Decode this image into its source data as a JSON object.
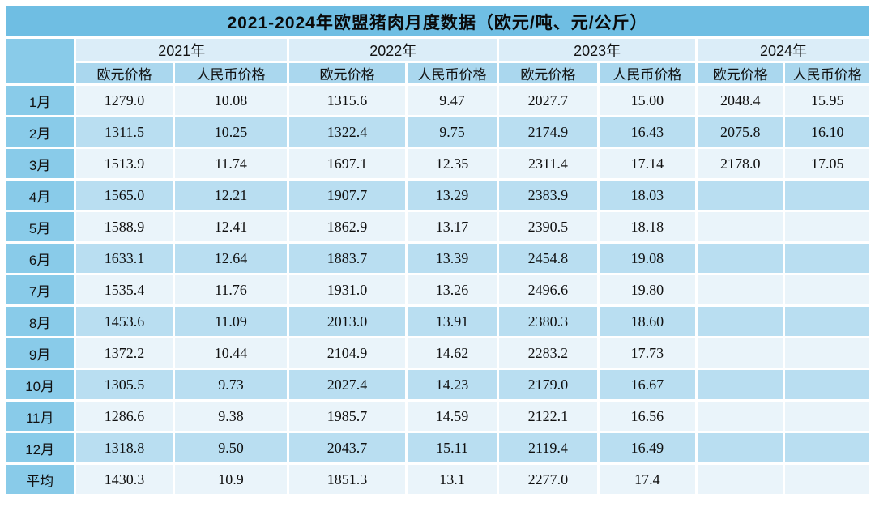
{
  "table": {
    "title": "2021-2024年欧盟猪肉月度数据（欧元/吨、元/公斤）",
    "year_headers": [
      "2021年",
      "2022年",
      "2023年",
      "2024年"
    ],
    "sub_headers": [
      "欧元价格",
      "人民币价格"
    ],
    "rows": [
      {
        "label": "1月",
        "values": [
          "1279.0",
          "10.08",
          "1315.6",
          "9.47",
          "2027.7",
          "15.00",
          "2048.4",
          "15.95"
        ]
      },
      {
        "label": "2月",
        "values": [
          "1311.5",
          "10.25",
          "1322.4",
          "9.75",
          "2174.9",
          "16.43",
          "2075.8",
          "16.10"
        ]
      },
      {
        "label": "3月",
        "values": [
          "1513.9",
          "11.74",
          "1697.1",
          "12.35",
          "2311.4",
          "17.14",
          "2178.0",
          "17.05"
        ]
      },
      {
        "label": "4月",
        "values": [
          "1565.0",
          "12.21",
          "1907.7",
          "13.29",
          "2383.9",
          "18.03",
          "",
          ""
        ]
      },
      {
        "label": "5月",
        "values": [
          "1588.9",
          "12.41",
          "1862.9",
          "13.17",
          "2390.5",
          "18.18",
          "",
          ""
        ]
      },
      {
        "label": "6月",
        "values": [
          "1633.1",
          "12.64",
          "1883.7",
          "13.39",
          "2454.8",
          "19.08",
          "",
          ""
        ]
      },
      {
        "label": "7月",
        "values": [
          "1535.4",
          "11.76",
          "1931.0",
          "13.26",
          "2496.6",
          "19.80",
          "",
          ""
        ]
      },
      {
        "label": "8月",
        "values": [
          "1453.6",
          "11.09",
          "2013.0",
          "13.91",
          "2380.3",
          "18.60",
          "",
          ""
        ]
      },
      {
        "label": "9月",
        "values": [
          "1372.2",
          "10.44",
          "2104.9",
          "14.62",
          "2283.2",
          "17.73",
          "",
          ""
        ]
      },
      {
        "label": "10月",
        "values": [
          "1305.5",
          "9.73",
          "2027.4",
          "14.23",
          "2179.0",
          "16.67",
          "",
          ""
        ]
      },
      {
        "label": "11月",
        "values": [
          "1286.6",
          "9.38",
          "1985.7",
          "14.59",
          "2122.1",
          "16.56",
          "",
          ""
        ]
      },
      {
        "label": "12月",
        "values": [
          "1318.8",
          "9.50",
          "2043.7",
          "15.11",
          "2119.4",
          "16.49",
          "",
          ""
        ]
      },
      {
        "label": "平均",
        "values": [
          "1430.3",
          "10.9",
          "1851.3",
          "13.1",
          "2277.0",
          "17.4",
          "",
          ""
        ]
      }
    ],
    "colors": {
      "title_bg": "#6fbee3",
      "year_header_bg": "#dbedf8",
      "sub_header_bg": "#aad7ee",
      "month_column_bg": "#89cbe9",
      "row_pale_bg": "#eaf4fa",
      "row_blue_bg": "#b9def1",
      "text": "#121212"
    }
  },
  "chart_data": {
    "type": "table",
    "title": "2021-2024年欧盟猪肉月度数据（欧元/吨、元/公斤）",
    "units": {
      "欧元价格": "欧元/吨",
      "人民币价格": "元/公斤"
    },
    "row_labels": [
      "1月",
      "2月",
      "3月",
      "4月",
      "5月",
      "6月",
      "7月",
      "8月",
      "9月",
      "10月",
      "11月",
      "12月",
      "平均"
    ],
    "series": [
      {
        "name": "2021年 欧元价格",
        "values": [
          1279.0,
          1311.5,
          1513.9,
          1565.0,
          1588.9,
          1633.1,
          1535.4,
          1453.6,
          1372.2,
          1305.5,
          1286.6,
          1318.8,
          1430.3
        ]
      },
      {
        "name": "2021年 人民币价格",
        "values": [
          10.08,
          10.25,
          11.74,
          12.21,
          12.41,
          12.64,
          11.76,
          11.09,
          10.44,
          9.73,
          9.38,
          9.5,
          10.9
        ]
      },
      {
        "name": "2022年 欧元价格",
        "values": [
          1315.6,
          1322.4,
          1697.1,
          1907.7,
          1862.9,
          1883.7,
          1931.0,
          2013.0,
          2104.9,
          2027.4,
          1985.7,
          2043.7,
          1851.3
        ]
      },
      {
        "name": "2022年 人民币价格",
        "values": [
          9.47,
          9.75,
          12.35,
          13.29,
          13.17,
          13.39,
          13.26,
          13.91,
          14.62,
          14.23,
          14.59,
          15.11,
          13.1
        ]
      },
      {
        "name": "2023年 欧元价格",
        "values": [
          2027.7,
          2174.9,
          2311.4,
          2383.9,
          2390.5,
          2454.8,
          2496.6,
          2380.3,
          2283.2,
          2179.0,
          2122.1,
          2119.4,
          2277.0
        ]
      },
      {
        "name": "2023年 人民币价格",
        "values": [
          15.0,
          16.43,
          17.14,
          18.03,
          18.18,
          19.08,
          19.8,
          18.6,
          17.73,
          16.67,
          16.56,
          16.49,
          17.4
        ]
      },
      {
        "name": "2024年 欧元价格",
        "values": [
          2048.4,
          2075.8,
          2178.0,
          null,
          null,
          null,
          null,
          null,
          null,
          null,
          null,
          null,
          null
        ]
      },
      {
        "name": "2024年 人民币价格",
        "values": [
          15.95,
          16.1,
          17.05,
          null,
          null,
          null,
          null,
          null,
          null,
          null,
          null,
          null,
          null
        ]
      }
    ]
  }
}
